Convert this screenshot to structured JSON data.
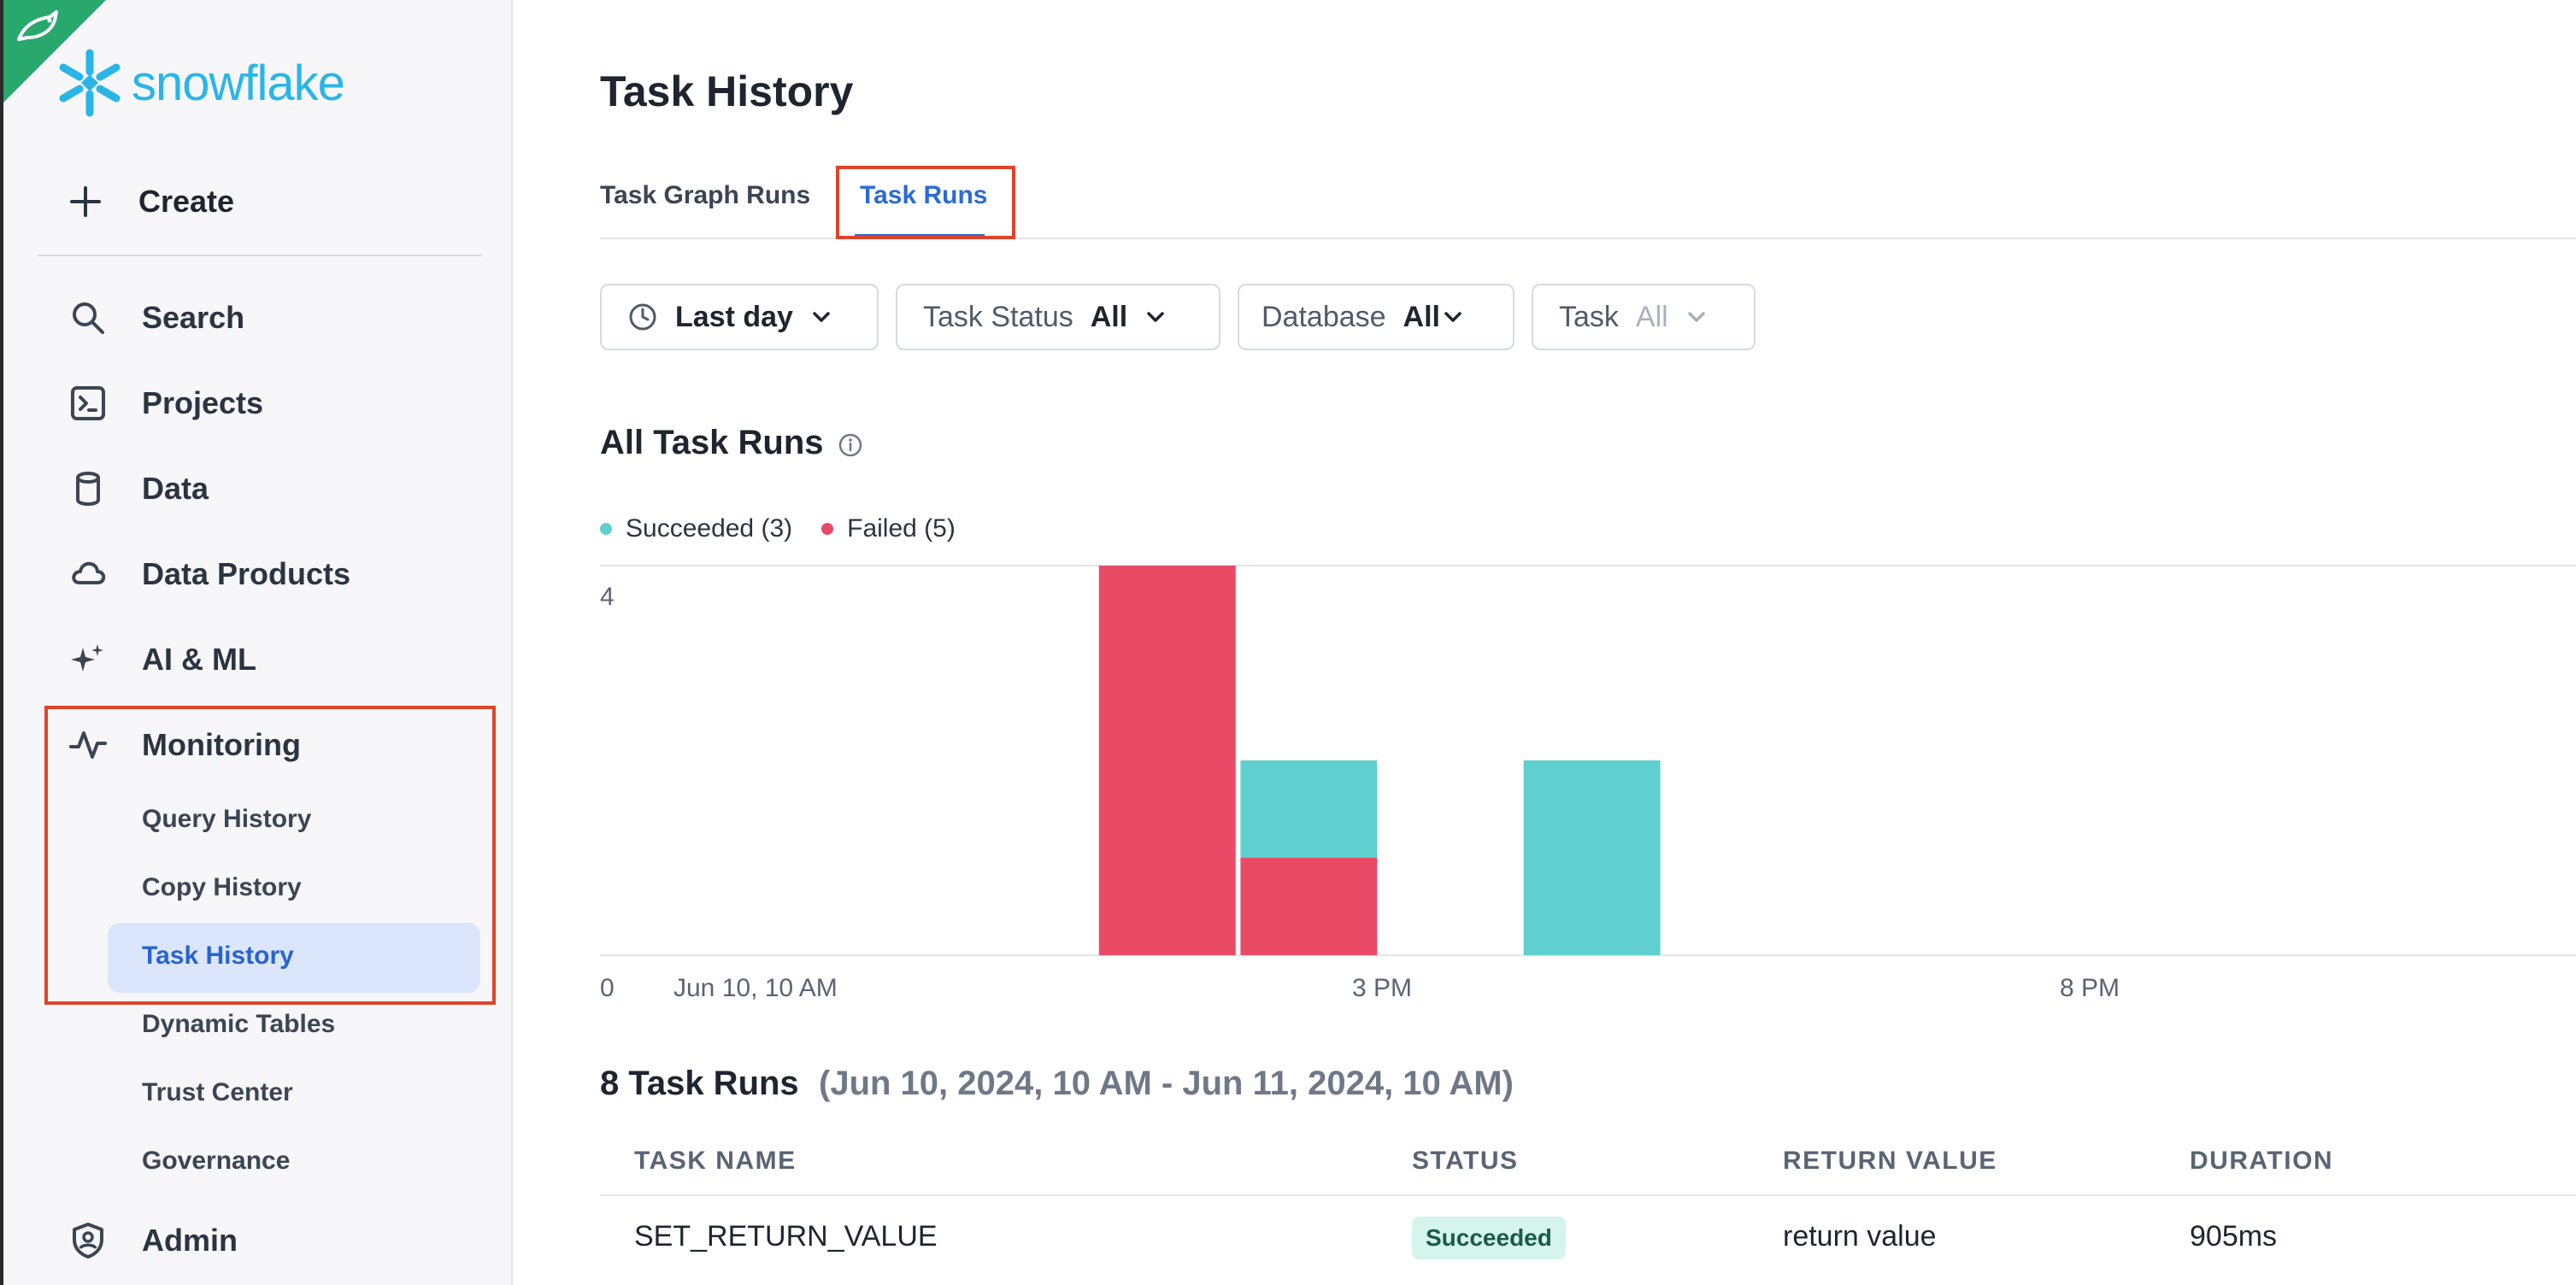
{
  "brand": {
    "name": "snowflake",
    "color": "#29b5e8",
    "corner_icon": "bird-icon",
    "corner_color": "#29a86d"
  },
  "sidebar": {
    "create_label": "Create",
    "items": [
      {
        "label": "Search",
        "icon": "search-icon"
      },
      {
        "label": "Projects",
        "icon": "terminal-icon"
      },
      {
        "label": "Data",
        "icon": "database-icon"
      },
      {
        "label": "Data Products",
        "icon": "cloud-icon"
      },
      {
        "label": "AI & ML",
        "icon": "sparkle-icon"
      },
      {
        "label": "Monitoring",
        "icon": "activity-icon"
      },
      {
        "label": "Admin",
        "icon": "shield-icon"
      }
    ],
    "monitoring_sub": [
      "Query History",
      "Copy History",
      "Task History",
      "Dynamic Tables",
      "Trust Center",
      "Governance"
    ],
    "active_sub": "Task History"
  },
  "main": {
    "title": "Task History",
    "tabs": [
      {
        "label": "Task Graph Runs",
        "active": false
      },
      {
        "label": "Task Runs",
        "active": true
      }
    ],
    "filters": {
      "time": "Last day",
      "task_status_label": "Task Status",
      "task_status_value": "All",
      "database_label": "Database",
      "database_value": "All",
      "task_label": "Task",
      "task_value": "All"
    },
    "chart_section_title": "All Task Runs",
    "runs_title": "8 Task Runs",
    "runs_range": "(Jun 10, 2024, 10 AM - Jun 11, 2024, 10 AM)",
    "table": {
      "headers": [
        "TASK NAME",
        "STATUS",
        "RETURN VALUE",
        "DURATION"
      ],
      "rows": [
        {
          "task_name": "SET_RETURN_VALUE",
          "status": "Succeeded",
          "return_value": "return value",
          "duration": "905ms"
        }
      ]
    }
  },
  "colors": {
    "succeeded": "#5fd0cf",
    "failed": "#e94b67",
    "accent": "#2a6bd6",
    "highlight": "#e0432b"
  },
  "chart_data": {
    "type": "bar",
    "stacked": true,
    "title": "All Task Runs",
    "series": [
      {
        "name": "Succeeded (3)",
        "color": "#5fd0cf",
        "values": [
          0,
          1,
          2
        ]
      },
      {
        "name": "Failed (5)",
        "color": "#e94b67",
        "values": [
          4,
          1,
          0
        ]
      }
    ],
    "buckets": [
      "Jun 10, 1 PM",
      "Jun 10, 2 PM",
      "Jun 10, 4 PM"
    ],
    "bucket_hours": [
      13,
      14,
      16
    ],
    "x_ticks": [
      {
        "label": "Jun 10, 10 AM",
        "hour": 10
      },
      {
        "label": "3 PM",
        "hour": 15
      },
      {
        "label": "8 PM",
        "hour": 20
      }
    ],
    "y_ticks": [
      0,
      4
    ],
    "ylim": [
      0,
      4
    ],
    "legend_position": "top-left",
    "grid": true
  }
}
